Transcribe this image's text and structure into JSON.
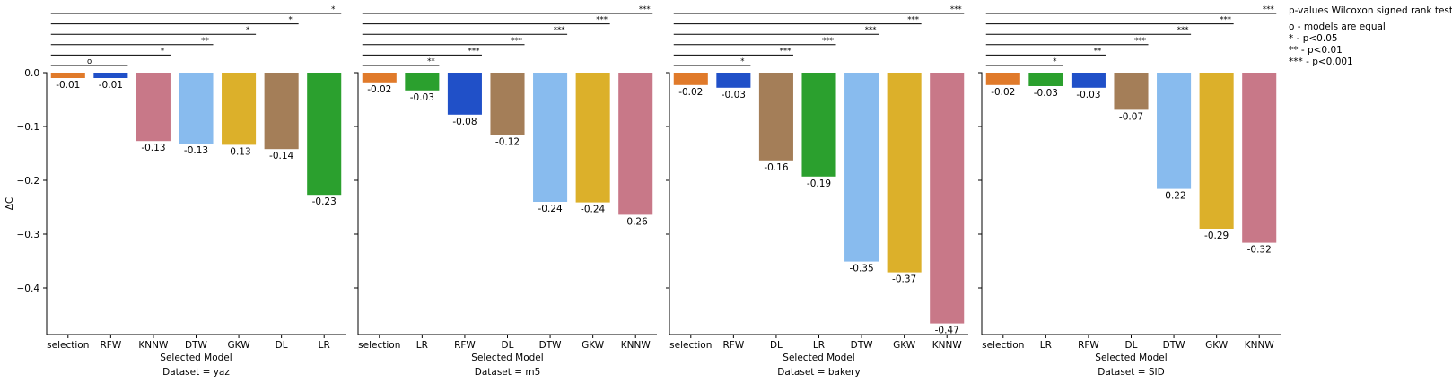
{
  "chart_data": [
    {
      "type": "bar",
      "dataset_label": "Dataset = yaz",
      "xlabel": "Selected Model",
      "ylabel": "ΔC",
      "ylim": [
        -0.49,
        0.0
      ],
      "yticks": [
        "0.0",
        "−0.1",
        "−0.2",
        "−0.3",
        "−0.4"
      ],
      "ytick_values": [
        0.0,
        -0.1,
        -0.2,
        -0.3,
        -0.4
      ],
      "categories": [
        "selection",
        "RFW",
        "KNNW",
        "DTW",
        "GKW",
        "DL",
        "LR"
      ],
      "values": [
        -0.01,
        -0.01,
        -0.13,
        -0.13,
        -0.13,
        -0.14,
        -0.23
      ],
      "bar_values": [
        -0.01,
        -0.01,
        -0.127,
        -0.132,
        -0.134,
        -0.142,
        -0.227
      ],
      "labels": [
        "-0.01",
        "-0.01",
        "-0.13",
        "-0.13",
        "-0.13",
        "-0.14",
        "-0.23"
      ],
      "colors": [
        "#e07a2a",
        "#2050c8",
        "#c87888",
        "#88bbee",
        "#dcb02a",
        "#a47e58",
        "#2ba02e"
      ],
      "significance": [
        {
          "to": 6,
          "mark": "*"
        },
        {
          "to": 5,
          "mark": "*"
        },
        {
          "to": 4,
          "mark": "*"
        },
        {
          "to": 3,
          "mark": "**"
        },
        {
          "to": 2,
          "mark": "*"
        },
        {
          "to": 1,
          "mark": "o"
        }
      ]
    },
    {
      "type": "bar",
      "dataset_label": "Dataset = m5",
      "xlabel": "Selected Model",
      "ylabel": "",
      "ylim": [
        -0.49,
        0.0
      ],
      "categories": [
        "selection",
        "LR",
        "RFW",
        "DL",
        "DTW",
        "GKW",
        "KNNW"
      ],
      "values": [
        -0.02,
        -0.03,
        -0.08,
        -0.12,
        -0.24,
        -0.24,
        -0.26
      ],
      "bar_values": [
        -0.018,
        -0.033,
        -0.078,
        -0.116,
        -0.24,
        -0.241,
        -0.264
      ],
      "labels": [
        "-0.02",
        "-0.03",
        "-0.08",
        "-0.12",
        "-0.24",
        "-0.24",
        "-0.26"
      ],
      "colors": [
        "#e07a2a",
        "#2ba02e",
        "#2050c8",
        "#a47e58",
        "#88bbee",
        "#dcb02a",
        "#c87888"
      ],
      "significance": [
        {
          "to": 6,
          "mark": "***"
        },
        {
          "to": 5,
          "mark": "***"
        },
        {
          "to": 4,
          "mark": "***"
        },
        {
          "to": 3,
          "mark": "***"
        },
        {
          "to": 2,
          "mark": "***"
        },
        {
          "to": 1,
          "mark": "**"
        }
      ]
    },
    {
      "type": "bar",
      "dataset_label": "Dataset = bakery",
      "xlabel": "Selected Model",
      "ylabel": "",
      "ylim": [
        -0.49,
        0.0
      ],
      "categories": [
        "selection",
        "RFW",
        "DL",
        "LR",
        "DTW",
        "GKW",
        "KNNW"
      ],
      "values": [
        -0.02,
        -0.03,
        -0.16,
        -0.19,
        -0.35,
        -0.37,
        -0.47
      ],
      "bar_values": [
        -0.023,
        -0.028,
        -0.163,
        -0.193,
        -0.351,
        -0.371,
        -0.466
      ],
      "labels": [
        "-0.02",
        "-0.03",
        "-0.16",
        "-0.19",
        "-0.35",
        "-0.37",
        "-0.47"
      ],
      "colors": [
        "#e07a2a",
        "#2050c8",
        "#a47e58",
        "#2ba02e",
        "#88bbee",
        "#dcb02a",
        "#c87888"
      ],
      "significance": [
        {
          "to": 6,
          "mark": "***"
        },
        {
          "to": 5,
          "mark": "***"
        },
        {
          "to": 4,
          "mark": "***"
        },
        {
          "to": 3,
          "mark": "***"
        },
        {
          "to": 2,
          "mark": "***"
        },
        {
          "to": 1,
          "mark": "*"
        }
      ]
    },
    {
      "type": "bar",
      "dataset_label": "Dataset = SID",
      "xlabel": "Selected Model",
      "ylabel": "",
      "ylim": [
        -0.49,
        0.0
      ],
      "categories": [
        "selection",
        "LR",
        "RFW",
        "DL",
        "DTW",
        "GKW",
        "KNNW"
      ],
      "values": [
        -0.02,
        -0.03,
        -0.03,
        -0.07,
        -0.22,
        -0.29,
        -0.32
      ],
      "bar_values": [
        -0.023,
        -0.025,
        -0.028,
        -0.069,
        -0.216,
        -0.29,
        -0.316
      ],
      "labels": [
        "-0.02",
        "-0.03",
        "-0.03",
        "-0.07",
        "-0.22",
        "-0.29",
        "-0.32"
      ],
      "colors": [
        "#e07a2a",
        "#2ba02e",
        "#2050c8",
        "#a47e58",
        "#88bbee",
        "#dcb02a",
        "#c87888"
      ],
      "significance": [
        {
          "to": 6,
          "mark": "***"
        },
        {
          "to": 5,
          "mark": "***"
        },
        {
          "to": 4,
          "mark": "***"
        },
        {
          "to": 3,
          "mark": "***"
        },
        {
          "to": 2,
          "mark": "**"
        },
        {
          "to": 1,
          "mark": "*"
        }
      ]
    }
  ],
  "legend": {
    "title": "p-values Wilcoxon signed rank test",
    "lines": [
      "o - models are equal",
      "* - p<0.05",
      "** - p<0.01",
      "*** - p<0.001"
    ]
  }
}
